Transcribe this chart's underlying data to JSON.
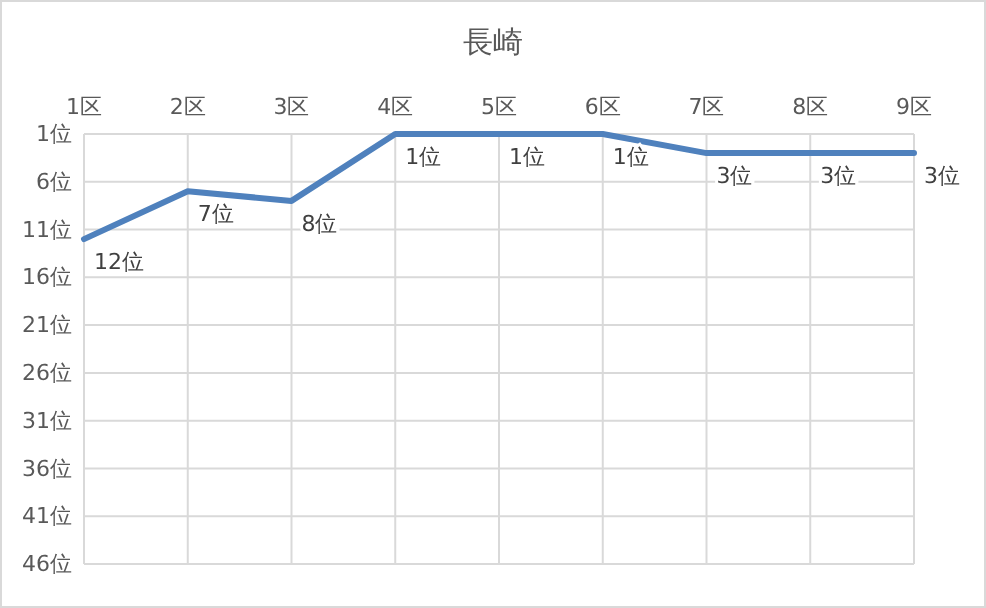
{
  "chart_data": {
    "type": "line",
    "title": "長崎",
    "categories": [
      "1区",
      "2区",
      "3区",
      "4区",
      "5区",
      "6区",
      "7区",
      "8区",
      "9区"
    ],
    "series": [
      {
        "color": "#4f81bd",
        "values": [
          12,
          7,
          8,
          1,
          1,
          1,
          3,
          3,
          3
        ],
        "value_labels": [
          "12位",
          "7位",
          "8位",
          "1位",
          "1位",
          "1位",
          "3位",
          "3位",
          "3位"
        ]
      }
    ],
    "ylim": [
      46,
      1
    ],
    "yticks": [
      {
        "value": 1,
        "label": "1位"
      },
      {
        "value": 6,
        "label": "6位"
      },
      {
        "value": 11,
        "label": "11位"
      },
      {
        "value": 16,
        "label": "16位"
      },
      {
        "value": 21,
        "label": "21位"
      },
      {
        "value": 26,
        "label": "26位"
      },
      {
        "value": 31,
        "label": "31位"
      },
      {
        "value": 36,
        "label": "36位"
      },
      {
        "value": 41,
        "label": "41位"
      },
      {
        "value": 46,
        "label": "46位"
      }
    ],
    "grid": true,
    "marker": "none",
    "line_style": "solid"
  }
}
